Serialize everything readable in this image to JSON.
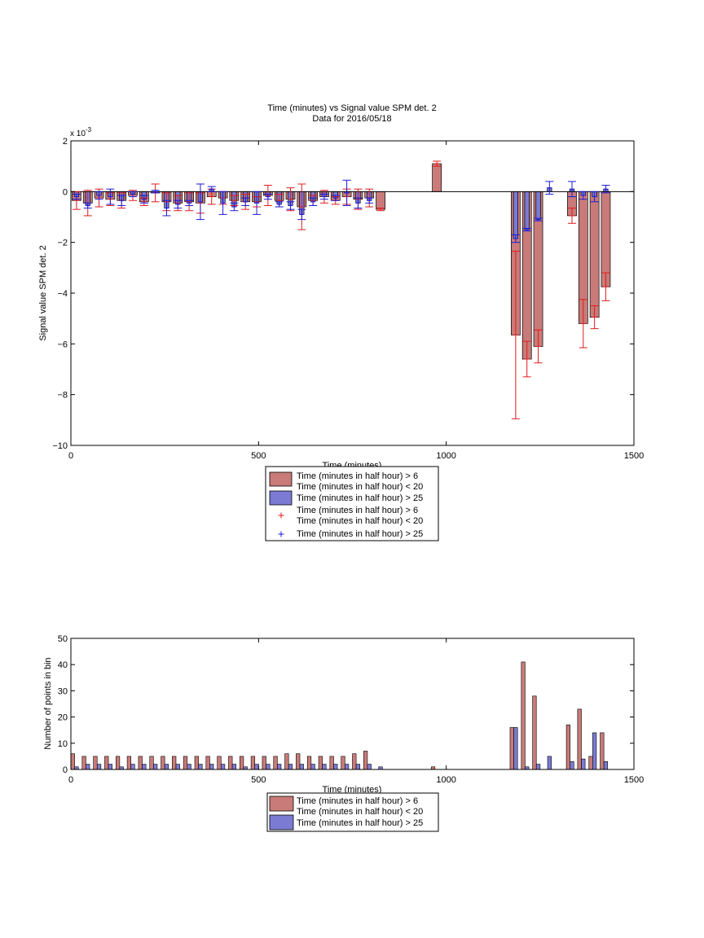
{
  "colors": {
    "red_bar": "#c87b78",
    "blue_bar": "#7b7bd3",
    "red_err": "#e31a1c",
    "blue_err": "#1a1adf"
  },
  "chart_data": [
    {
      "type": "bar",
      "title": "Time (minutes) vs Signal value SPM det. 2",
      "subtitle": "Data for 2016/05/18",
      "xlabel": "Time (minutes)",
      "ylabel": "Signal value SPM det. 2",
      "exponent_label": "x 10",
      "exponent_power": "-3",
      "xlim": [
        0,
        1500
      ],
      "ylim": [
        -10,
        2
      ],
      "xticks": [
        "0",
        "500",
        "1000",
        "1500"
      ],
      "yticks": [
        "2",
        "0",
        "−2",
        "−4",
        "−6",
        "−8",
        "−10"
      ],
      "grid": false,
      "legend": {
        "placement": "below-axes",
        "entries": [
          "Time (minutes in half hour) > 6",
          "Time (minutes in half hour) < 20",
          "Time (minutes in half hour) > 25",
          "Time (minutes in half hour) > 6",
          "Time (minutes in half hour) < 20",
          "Time (minutes in half hour) > 25"
        ]
      },
      "bar_width": 24,
      "series": [
        {
          "key": "red",
          "x": [
            15,
            45,
            75,
            105,
            135,
            165,
            195,
            225,
            255,
            285,
            315,
            345,
            375,
            405,
            435,
            465,
            495,
            525,
            555,
            585,
            615,
            645,
            675,
            705,
            735,
            765,
            795,
            825,
            975,
            1185,
            1215,
            1245,
            1335,
            1365,
            1395,
            1425
          ],
          "values": [
            -0.35,
            -0.45,
            -0.25,
            -0.3,
            -0.35,
            -0.15,
            -0.4,
            -0.05,
            -0.4,
            -0.45,
            -0.4,
            -0.45,
            -0.2,
            -0.25,
            -0.35,
            -0.4,
            -0.4,
            -0.15,
            -0.35,
            -0.3,
            -0.6,
            -0.35,
            -0.2,
            -0.35,
            -0.2,
            -0.3,
            -0.25,
            -0.7,
            1.1,
            -5.65,
            -6.6,
            -6.1,
            -0.95,
            -5.2,
            -4.95,
            -3.75
          ],
          "err": [
            0.35,
            0.5,
            0.35,
            0.25,
            0.3,
            0.2,
            0.15,
            0.35,
            0.35,
            0.3,
            0.35,
            0.4,
            0.3,
            0.25,
            0.2,
            0.3,
            0.2,
            0.4,
            0.25,
            0.45,
            0.9,
            0.2,
            0.25,
            0.15,
            0.3,
            0.4,
            0.35,
            0.05,
            0.1,
            3.3,
            0.7,
            0.65,
            0.3,
            0.95,
            0.45,
            0.55
          ]
        },
        {
          "key": "blue",
          "x": [
            15,
            45,
            75,
            105,
            135,
            165,
            195,
            225,
            255,
            285,
            315,
            345,
            375,
            405,
            435,
            465,
            495,
            525,
            555,
            585,
            615,
            645,
            675,
            705,
            735,
            765,
            795,
            1185,
            1215,
            1245,
            1275,
            1335,
            1365,
            1395,
            1425
          ],
          "values": [
            -0.2,
            -0.55,
            -0.15,
            -0.2,
            -0.35,
            -0.1,
            -0.3,
            0.0,
            -0.65,
            -0.5,
            -0.45,
            -0.4,
            0.1,
            -0.45,
            -0.6,
            -0.4,
            -0.45,
            -0.2,
            -0.5,
            -0.55,
            -0.9,
            -0.4,
            -0.2,
            -0.25,
            -0.05,
            -0.45,
            -0.35,
            -1.85,
            -1.5,
            -1.1,
            0.15,
            0.1,
            -0.15,
            -0.2,
            0.1
          ],
          "err": [
            0.1,
            0.1,
            0.15,
            0.3,
            0.2,
            0.1,
            0.15,
            0.05,
            0.3,
            0.15,
            0.1,
            0.7,
            0.1,
            0.45,
            0.15,
            0.15,
            0.45,
            0.1,
            0.1,
            0.15,
            0.2,
            0.15,
            0.1,
            0.1,
            0.5,
            0.2,
            0.1,
            0.15,
            0.05,
            0.05,
            0.25,
            0.3,
            0.15,
            0.2,
            0.15
          ]
        }
      ]
    },
    {
      "type": "bar",
      "xlabel": "Time (minutes)",
      "ylabel": "Number of points in bin",
      "xlim": [
        0,
        1500
      ],
      "ylim": [
        0,
        50
      ],
      "xticks": [
        "0",
        "500",
        "1000",
        "1500"
      ],
      "yticks": [
        "0",
        "10",
        "20",
        "30",
        "40",
        "50"
      ],
      "grid": false,
      "legend": {
        "placement": "below-axes",
        "entries": [
          "Time (minutes in half hour) > 6",
          "Time (minutes in half hour) < 20",
          "Time (minutes in half hour) > 25"
        ]
      },
      "bar_width": 10,
      "series": [
        {
          "key": "red",
          "x": [
            5,
            35,
            65,
            95,
            125,
            155,
            185,
            215,
            245,
            275,
            305,
            335,
            365,
            395,
            425,
            455,
            485,
            515,
            545,
            575,
            605,
            635,
            665,
            695,
            725,
            755,
            785,
            965,
            1175,
            1205,
            1235,
            1325,
            1355,
            1385,
            1415
          ],
          "values": [
            6,
            5,
            5,
            5,
            5,
            5,
            5,
            5,
            5,
            5,
            5,
            5,
            5,
            5,
            5,
            5,
            5,
            5,
            5,
            6,
            6,
            5,
            5,
            5,
            5,
            6,
            7,
            1,
            16,
            41,
            28,
            17,
            23,
            5,
            14
          ]
        },
        {
          "key": "blue",
          "x": [
            15,
            45,
            75,
            105,
            135,
            165,
            195,
            225,
            255,
            285,
            315,
            345,
            375,
            405,
            435,
            465,
            495,
            525,
            555,
            585,
            615,
            645,
            675,
            705,
            735,
            765,
            795,
            825,
            1185,
            1215,
            1245,
            1275,
            1335,
            1365,
            1395,
            1425
          ],
          "values": [
            1,
            2,
            2,
            2,
            1,
            2,
            2,
            2,
            2,
            2,
            2,
            2,
            2,
            2,
            2,
            1,
            2,
            2,
            2,
            2,
            2,
            2,
            2,
            2,
            2,
            2,
            2,
            1,
            16,
            1,
            2,
            5,
            3,
            4,
            14,
            3
          ]
        }
      ]
    }
  ]
}
